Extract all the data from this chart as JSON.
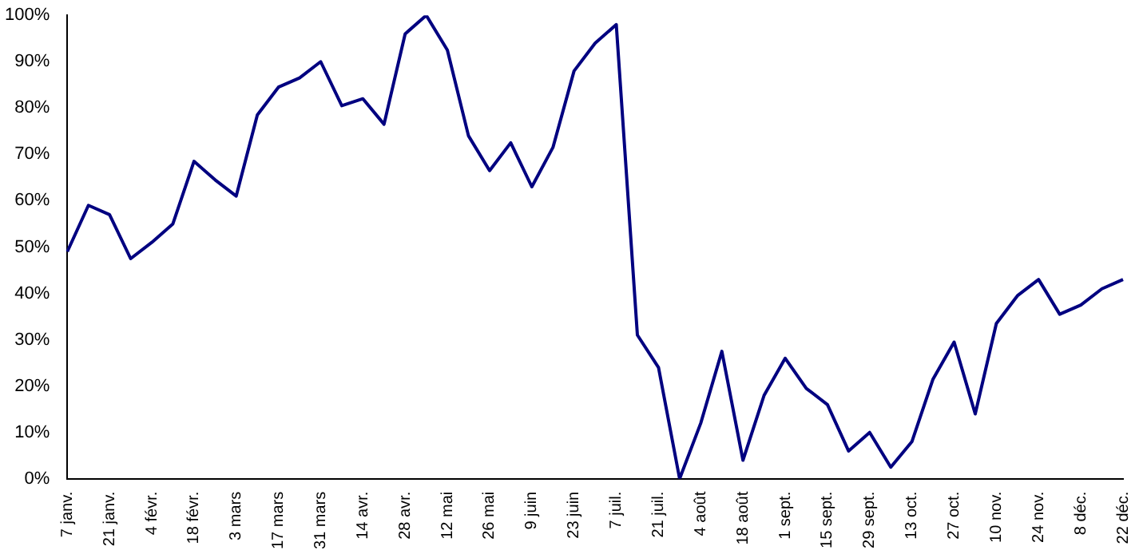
{
  "chart_data": {
    "type": "line",
    "categories": [
      "7 janv.",
      null,
      "21 janv.",
      null,
      "4 févr.",
      null,
      "18 févr.",
      null,
      "3 mars",
      null,
      "17 mars",
      null,
      "31 mars",
      null,
      "14 avr.",
      null,
      "28 avr.",
      null,
      "12 mai",
      null,
      "26 mai",
      null,
      "9 juin",
      null,
      "23 juin",
      null,
      "7 juil.",
      null,
      "21 juil.",
      null,
      "4 août",
      null,
      "18 août",
      null,
      "1 sept.",
      null,
      "15 sept.",
      null,
      "29 sept.",
      null,
      "13 oct.",
      null,
      "27 oct.",
      null,
      "10 nov.",
      null,
      "24 nov.",
      null,
      "8 déc.",
      null,
      "22 déc."
    ],
    "series": [
      {
        "color": "#000080",
        "values": [
          49,
          59,
          57,
          47.5,
          51,
          55,
          68.5,
          64.5,
          61,
          78.5,
          84.5,
          86.5,
          90,
          80.5,
          82,
          76.5,
          96,
          100,
          92.5,
          74,
          66.5,
          72.5,
          63,
          71.5,
          88,
          94,
          98,
          31,
          24,
          0,
          12,
          27.5,
          4,
          18,
          26,
          19.5,
          16,
          6,
          10,
          2.5,
          8,
          21.5,
          29.5,
          14,
          33.5,
          39.5,
          43,
          35.5,
          37.5,
          41,
          43
        ]
      }
    ],
    "ylim": [
      0,
      100
    ],
    "yticks": [
      {
        "value": 0,
        "label": "0%"
      },
      {
        "value": 10,
        "label": "10%"
      },
      {
        "value": 20,
        "label": "20%"
      },
      {
        "value": 30,
        "label": "30%"
      },
      {
        "value": 40,
        "label": "40%"
      },
      {
        "value": 50,
        "label": "50%"
      },
      {
        "value": 60,
        "label": "60%"
      },
      {
        "value": 70,
        "label": "70%"
      },
      {
        "value": 80,
        "label": "80%"
      },
      {
        "value": 90,
        "label": "90%"
      },
      {
        "value": 100,
        "label": "100%"
      }
    ],
    "grid": false,
    "legend": false,
    "marker": "none",
    "line_style": "solid"
  }
}
